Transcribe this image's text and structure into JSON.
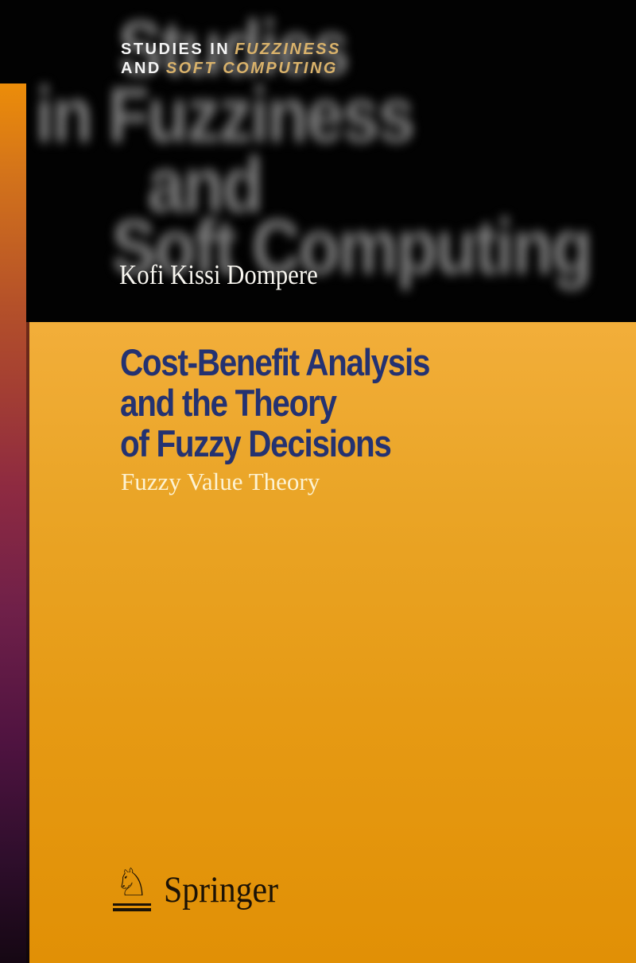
{
  "cover": {
    "series_label": {
      "line1": {
        "regular": "STUDIES IN",
        "highlight": "FUZZINESS"
      },
      "line2": {
        "regular": "AND",
        "highlight": "SOFT COMPUTING"
      }
    },
    "background_watermark": {
      "line1": "Studies",
      "line2": "in Fuzziness",
      "line3": "and",
      "line4": "Soft Computing"
    },
    "author": "Kofi Kissi Dompere",
    "title": {
      "line1": "Cost-Benefit Analysis",
      "line2": "and the Theory",
      "line3": "of Fuzzy Decisions"
    },
    "subtitle": "Fuzzy Value Theory",
    "publisher": {
      "name": "Springer",
      "knight_glyph": "♘"
    },
    "colors": {
      "header_background": "#020202",
      "panel_orange_top": "#f2ae3a",
      "panel_orange_bottom": "#e19005",
      "stripe_top": "#ec8d09",
      "stripe_middle": "#8e2a41",
      "stripe_bottom": "#150713",
      "title_navy": "#243271",
      "series_gold": "#d9b26b",
      "series_white": "#f4f4f4",
      "watermark_gray": "#7d7d7d",
      "subtitle_cream": "#fdf3d3",
      "publisher_ink": "#1b1206"
    }
  }
}
